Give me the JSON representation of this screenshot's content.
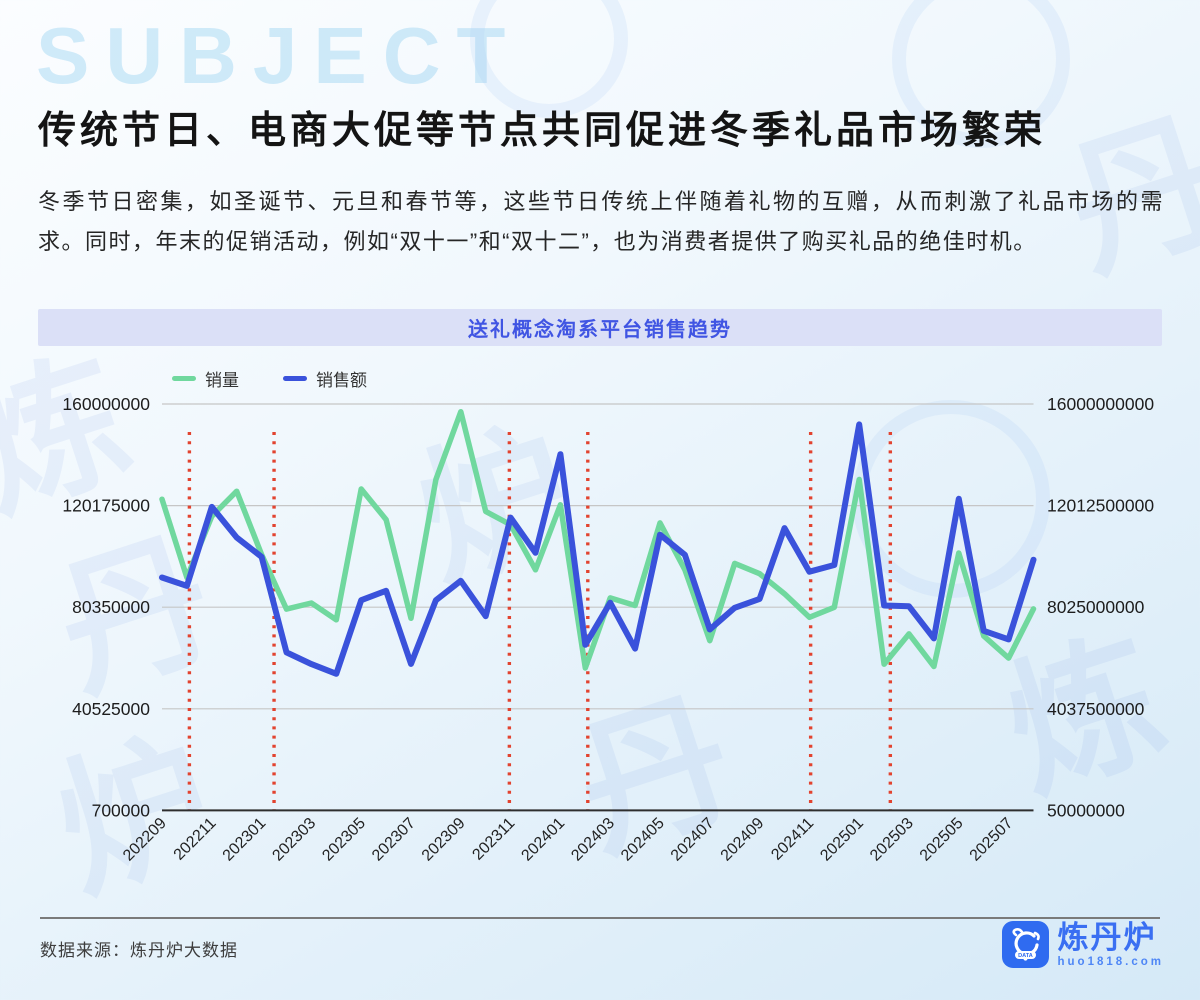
{
  "page": {
    "title": "传统节日、电商大促等节点共同促进冬季礼品市场繁荣",
    "paragraph": "冬季节日密集，如圣诞节、元旦和春节等，这些节日传统上伴随着礼物的互赠，从而刺激了礼品市场的需求。同时，年末的促销活动，例如“双十一”和“双十二”，也为消费者提供了购买礼品的绝佳时机。",
    "watermark_text": "SUBJECT"
  },
  "chart": {
    "header": "送礼概念淘系平台销售趋势",
    "legend": [
      {
        "label": "销量",
        "color": "#70d89e"
      },
      {
        "label": "销售额",
        "color": "#3a52db"
      }
    ]
  },
  "chart_data": {
    "type": "line",
    "title": "送礼概念淘系平台销售趋势",
    "x": [
      "202209",
      "202210",
      "202211",
      "202212",
      "202301",
      "202302",
      "202303",
      "202304",
      "202305",
      "202306",
      "202307",
      "202308",
      "202309",
      "202310",
      "202311",
      "202312",
      "202401",
      "202402",
      "202403",
      "202404",
      "202405",
      "202406",
      "202407",
      "202408",
      "202409",
      "202410",
      "202411",
      "202412",
      "202501",
      "202502",
      "202503",
      "202504",
      "202505",
      "202506",
      "202507",
      "202508"
    ],
    "x_tick_labels": [
      "202209",
      "202211",
      "202301",
      "202303",
      "202305",
      "202307",
      "202309",
      "202311",
      "202401",
      "202403",
      "202405",
      "202407",
      "202409",
      "202411",
      "202501",
      "202503",
      "202505",
      "202507"
    ],
    "series": [
      {
        "name": "销量",
        "axis": "left",
        "color": "#70d89e",
        "values": [
          122700000,
          92000000,
          116000000,
          125800000,
          101000000,
          79600000,
          82000000,
          75400000,
          126700000,
          114700000,
          76000000,
          130400000,
          157000000,
          117900000,
          112700000,
          95000000,
          120500000,
          56500000,
          84000000,
          81000000,
          113400000,
          95000000,
          67200000,
          97500000,
          93500000,
          85600000,
          76400000,
          80300000,
          130400000,
          58000000,
          69900000,
          57100000,
          101600000,
          69100000,
          60400000,
          79700000
        ]
      },
      {
        "name": "销售额",
        "axis": "right",
        "color": "#3a52db",
        "values": [
          9190000000,
          8860000000,
          11960000000,
          10760000000,
          10000000000,
          6250000000,
          5790000000,
          5410000000,
          8300000000,
          8670000000,
          5800000000,
          8300000000,
          9060000000,
          7670000000,
          11540000000,
          10160000000,
          14030000000,
          6550000000,
          8200000000,
          6400000000,
          10870000000,
          10080000000,
          7150000000,
          8000000000,
          8350000000,
          11130000000,
          9420000000,
          9680000000,
          15200000000,
          8090000000,
          8060000000,
          6800000000,
          12280000000,
          7100000000,
          6760000000,
          9890000000
        ]
      }
    ],
    "left_axis": {
      "min": 700000,
      "max": 160000000,
      "tick_labels": [
        "160000000",
        "120175000",
        "80350000",
        "40525000",
        "700000"
      ]
    },
    "right_axis": {
      "min": 50000000,
      "max": 16000000000,
      "tick_labels": [
        "16000000000",
        "12012500000",
        "8025000000",
        "4037500000",
        "50000000"
      ]
    },
    "event_markers": {
      "description": "节日/大促节点虚线",
      "style": "dotted",
      "color": "#e2432f",
      "month_indices": [
        1.1,
        4.5,
        13.95,
        17.1,
        26.05,
        29.25
      ]
    },
    "grid": true,
    "legend_position": "top-left"
  },
  "footer": {
    "source": "数据来源：炼丹炉大数据",
    "brand": "炼丹炉",
    "brand_url": "huo1818.com",
    "logo_text": "DATA"
  }
}
